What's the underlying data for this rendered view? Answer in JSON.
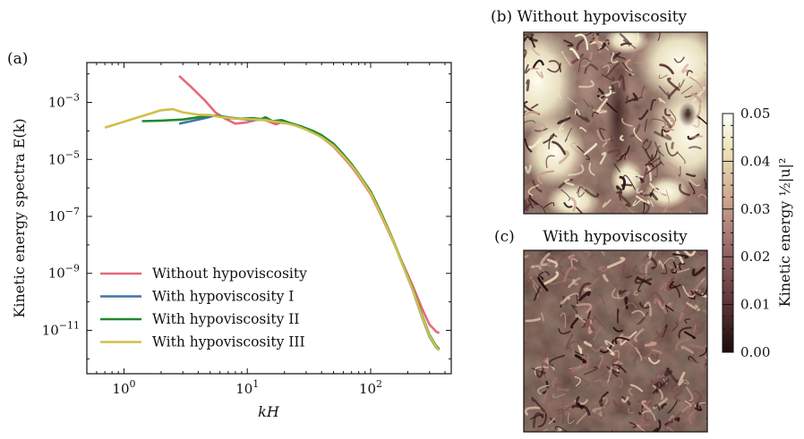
{
  "figure": {
    "panel_a_label": "(a)",
    "panel_b_label": "(b) Without hypoviscosity",
    "panel_c_label": "(c)",
    "panel_c_title": "With hypoviscosity"
  },
  "chart_data": [
    {
      "type": "line",
      "panel": "(a)",
      "xlabel": "kH",
      "ylabel": "Kinetic energy spectra E(k)",
      "xscale": "log",
      "yscale": "log",
      "xlim": [
        0.5,
        450
      ],
      "ylim": [
        3e-13,
        0.025
      ],
      "x_ticks": [
        1,
        10,
        100
      ],
      "x_tick_labels": [
        "10^0",
        "10^1",
        "10^2"
      ],
      "y_ticks": [
        1e-11,
        1e-09,
        1e-07,
        1e-05,
        0.001
      ],
      "y_tick_labels": [
        "10^-11",
        "10^-9",
        "10^-7",
        "10^-5",
        "10^-3"
      ],
      "grid": false,
      "legend_position": "bottom-left",
      "series": [
        {
          "name": "Without hypoviscosity",
          "color": "#e8677a",
          "x": [
            2.8,
            3.5,
            4.5,
            5.5,
            6.5,
            8,
            10,
            12,
            14,
            17,
            20,
            25,
            30,
            35,
            40,
            50,
            60,
            70,
            80,
            100,
            120,
            150,
            180,
            220,
            260,
            300,
            340,
            360
          ],
          "y": [
            0.0085,
            0.0035,
            0.0012,
            0.00045,
            0.00028,
            0.00018,
            0.0002,
            0.00025,
            0.00024,
            0.00017,
            0.00022,
            0.00015,
            0.00012,
            9e-05,
            6e-05,
            2.8e-05,
            1.2e-05,
            5.5e-06,
            2.5e-06,
            6e-07,
            1.2e-07,
            1.5e-08,
            2.5e-09,
            3.5e-10,
            6e-11,
            1.6e-11,
            9e-12,
            8e-12
          ]
        },
        {
          "name": "With hypoviscosity I",
          "color": "#4474a8",
          "x": [
            2.8,
            3.5,
            4.5,
            5.5,
            7,
            9,
            11,
            13,
            15,
            18,
            22,
            27,
            33,
            40,
            50,
            60,
            70,
            80,
            100,
            120,
            150,
            180,
            220,
            260,
            300,
            340,
            360
          ],
          "y": [
            0.00018,
            0.00022,
            0.00028,
            0.00035,
            0.0003,
            0.00026,
            0.00024,
            0.00025,
            0.00023,
            0.0002,
            0.00018,
            0.00014,
            0.0001,
            7e-05,
            3.5e-05,
            1.5e-05,
            6.5e-06,
            3e-06,
            7e-07,
            1.4e-07,
            1.6e-08,
            2.2e-09,
            2.5e-10,
            3e-11,
            6e-12,
            2.5e-12,
            2e-12
          ]
        },
        {
          "name": "With hypoviscosity II",
          "color": "#1f8a2e",
          "x": [
            1.4,
            2,
            3,
            4,
            5,
            6,
            7,
            9,
            11,
            13,
            14,
            16,
            19,
            23,
            28,
            34,
            40,
            50,
            60,
            70,
            80,
            100,
            120,
            150,
            180,
            220,
            260,
            300,
            340,
            360
          ],
          "y": [
            0.00022,
            0.00023,
            0.00025,
            0.0003,
            0.00035,
            0.00033,
            0.00028,
            0.00027,
            0.00028,
            0.00026,
            0.0003,
            0.00022,
            0.00024,
            0.00018,
            0.00014,
            0.0001,
            7e-05,
            3.5e-05,
            1.5e-05,
            6.8e-06,
            3e-06,
            7.5e-07,
            1.5e-07,
            1.7e-08,
            2.3e-09,
            2.8e-10,
            3.5e-11,
            7e-12,
            2.8e-12,
            2.2e-12
          ]
        },
        {
          "name": "With hypoviscosity III",
          "color": "#cfc04a",
          "x": [
            0.7,
            1,
            1.4,
            2,
            2.5,
            3,
            4,
            5,
            6,
            8,
            10,
            12,
            14,
            17,
            20,
            25,
            30,
            35,
            40,
            50,
            60,
            70,
            80,
            100,
            120,
            150,
            180,
            220,
            260,
            300,
            340,
            360
          ],
          "y": [
            0.00013,
            0.00021,
            0.00033,
            0.00053,
            0.00058,
            0.00045,
            0.00037,
            0.00036,
            0.00031,
            0.00027,
            0.00026,
            0.00025,
            0.00024,
            0.00021,
            0.00019,
            0.00015,
            0.00011,
            8e-05,
            6e-05,
            3e-05,
            1.3e-05,
            6e-06,
            2.8e-06,
            6.5e-07,
            1.3e-07,
            1.6e-08,
            2.2e-09,
            2.6e-10,
            3.2e-11,
            6.5e-12,
            2.6e-12,
            2e-12
          ]
        }
      ]
    },
    {
      "type": "heatmap",
      "panel": "(b)",
      "title": "(b) Without hypoviscosity",
      "description_colormap": "dark-brown to white",
      "clim": [
        0,
        0.05
      ]
    },
    {
      "type": "heatmap",
      "panel": "(c)",
      "title": "With hypoviscosity",
      "clim": [
        0,
        0.05
      ]
    },
    {
      "type": "colorbar",
      "label": "Kinetic energy ½|u|²",
      "range": [
        0,
        0.05
      ],
      "ticks": [
        0,
        0.01,
        0.02,
        0.03,
        0.04,
        0.05
      ],
      "tick_labels": [
        "0.00",
        "0.01",
        "0.02",
        "0.03",
        "0.04",
        "0.05"
      ],
      "colors": [
        "#1c0c0c",
        "#5a3236",
        "#9c6b6b",
        "#cfa890",
        "#ece3b8",
        "#ffffff"
      ]
    }
  ]
}
